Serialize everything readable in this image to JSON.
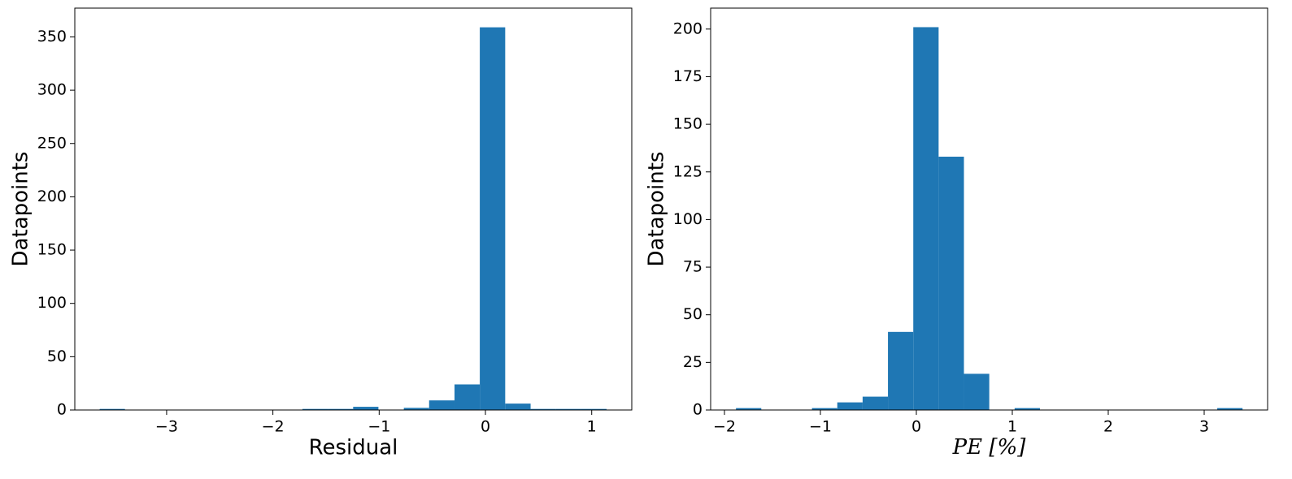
{
  "chart_data": [
    {
      "type": "histogram",
      "xlabel": "Residual",
      "ylabel": "Datapoints",
      "color": "#1f77b4",
      "bins": [
        -3.63,
        -3.392,
        -3.153,
        -2.915,
        -2.676,
        -2.438,
        -2.199,
        -1.961,
        -1.722,
        -1.484,
        -1.245,
        -1.007,
        -0.768,
        -0.53,
        -0.291,
        -0.053,
        0.186,
        0.425,
        0.663,
        0.902,
        1.14
      ],
      "values": [
        1,
        0,
        0,
        0,
        0,
        0,
        0,
        0,
        1,
        1,
        3,
        0,
        2,
        9,
        24,
        359,
        6,
        1,
        1,
        1
      ],
      "xlim": [
        -3.864,
        1.377
      ],
      "ylim": [
        0,
        377
      ],
      "xticks": [
        {
          "value": -3,
          "label": "−3"
        },
        {
          "value": -2,
          "label": "−2"
        },
        {
          "value": -1,
          "label": "−1"
        },
        0,
        1
      ],
      "yticks": [
        0,
        50,
        100,
        150,
        200,
        250,
        300,
        350
      ]
    },
    {
      "type": "histogram",
      "xlabel": "PE [%]",
      "ylabel": "Datapoints",
      "color": "#1f77b4",
      "bins": [
        -1.88,
        -1.616,
        -1.352,
        -1.088,
        -0.824,
        -0.56,
        -0.296,
        -0.032,
        0.232,
        0.496,
        0.76,
        1.024,
        1.288,
        1.552,
        1.816,
        2.08,
        2.344,
        2.608,
        2.872,
        3.136,
        3.4
      ],
      "values": [
        1,
        0,
        0,
        1,
        4,
        7,
        41,
        201,
        133,
        19,
        0,
        1,
        0,
        0,
        0,
        0,
        0,
        0,
        0,
        1
      ],
      "xlim": [
        -2.144,
        3.661
      ],
      "ylim": [
        0,
        211
      ],
      "xticks": [
        {
          "value": -2,
          "label": "−2"
        },
        {
          "value": -1,
          "label": "−1"
        },
        0,
        1,
        2,
        3
      ],
      "yticks": [
        0,
        25,
        50,
        75,
        100,
        125,
        150,
        175,
        200
      ]
    }
  ]
}
